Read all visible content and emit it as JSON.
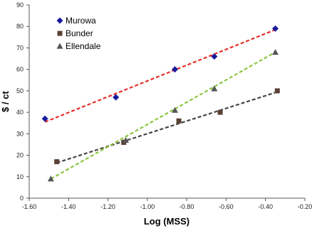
{
  "chart_data": {
    "type": "scatter",
    "xlabel": "Log (MSS)",
    "ylabel": "$ / ct",
    "xlim": [
      -1.6,
      -0.2
    ],
    "ylim": [
      0,
      90
    ],
    "x_ticks": [
      -1.6,
      -1.4,
      -1.2,
      -1.0,
      -0.8,
      -0.6,
      -0.4,
      -0.2
    ],
    "x_tick_labels": [
      "-1.60",
      "-1.40",
      "-1.20",
      "-1.00",
      "-0.80",
      "-0.60",
      "-0.40",
      "-0.20"
    ],
    "y_ticks": [
      0,
      10,
      20,
      30,
      40,
      50,
      60,
      70,
      80,
      90
    ],
    "y_tick_labels": [
      "0",
      "10",
      "20",
      "30",
      "40",
      "50",
      "60",
      "70",
      "80",
      "90"
    ],
    "grid": false,
    "legend_position": "top-left",
    "series": [
      {
        "name": "Murowa",
        "marker": "diamond",
        "color": "#1a1a9c",
        "trend_color": "#e8302a",
        "points": [
          [
            -1.52,
            37
          ],
          [
            -1.16,
            47
          ],
          [
            -0.86,
            60
          ],
          [
            -0.66,
            66
          ],
          [
            -0.35,
            79
          ]
        ],
        "trend": [
          [
            -1.52,
            35.5
          ],
          [
            -0.35,
            78.5
          ]
        ]
      },
      {
        "name": "Bunder",
        "marker": "square",
        "color": "#5a4035",
        "trend_color": "#444444",
        "points": [
          [
            -1.46,
            17
          ],
          [
            -1.12,
            26
          ],
          [
            -0.84,
            36
          ],
          [
            -0.63,
            40
          ],
          [
            -0.34,
            50
          ]
        ],
        "trend": [
          [
            -1.46,
            16.5
          ],
          [
            -0.34,
            49.5
          ]
        ]
      },
      {
        "name": "Ellendale",
        "marker": "triangle",
        "color": "#555555",
        "trend_color": "#8cc63f",
        "points": [
          [
            -1.49,
            9
          ],
          [
            -1.11,
            27
          ],
          [
            -0.86,
            41
          ],
          [
            -0.66,
            51
          ],
          [
            -0.35,
            68
          ]
        ],
        "trend": [
          [
            -1.49,
            9
          ],
          [
            -0.35,
            68
          ]
        ]
      }
    ]
  }
}
